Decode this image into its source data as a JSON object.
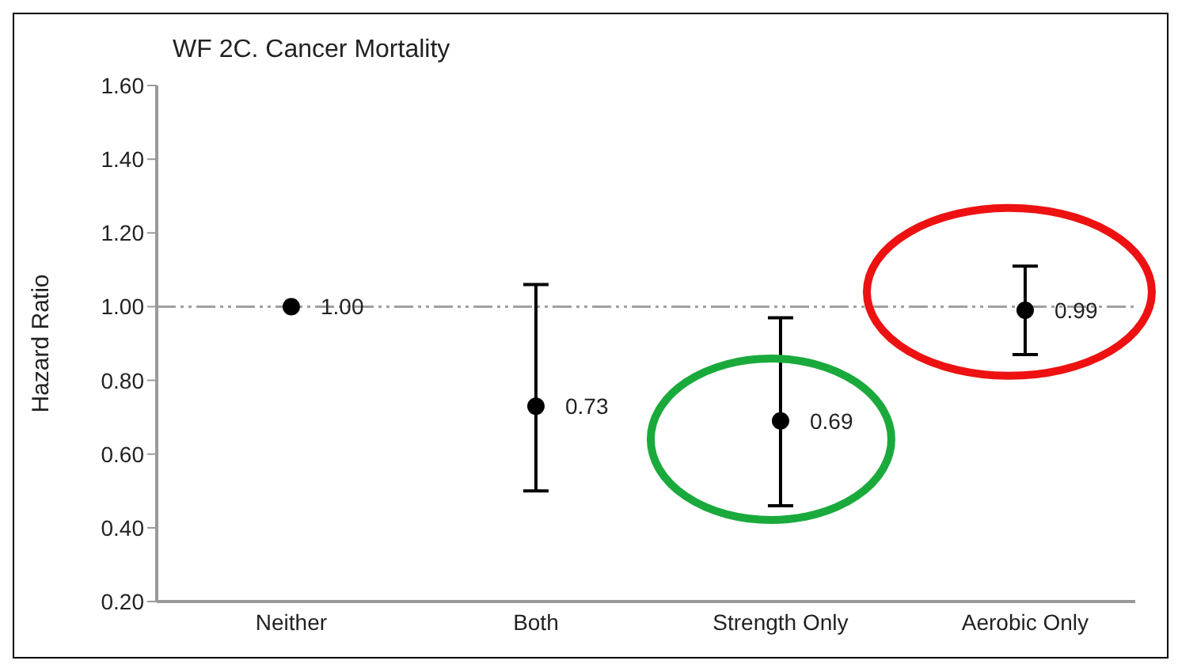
{
  "chart_data": {
    "type": "scatter",
    "title": "WF 2C. Cancer Mortality",
    "ylabel": "Hazard Ratio",
    "categories": [
      "Neither",
      "Both",
      "Strength Only",
      "Aerobic Only"
    ],
    "series": [
      {
        "color": "#000000",
        "values": [
          1.0,
          0.73,
          0.69,
          0.99
        ],
        "errors": [
          null,
          [
            0.5,
            1.06
          ],
          [
            0.46,
            0.97
          ],
          [
            0.87,
            1.11
          ]
        ],
        "value_labels": [
          "1.00",
          "0.73",
          "0.69",
          "0.99"
        ]
      }
    ],
    "marker": "circle",
    "ylim": [
      0.2,
      1.6
    ],
    "yticks": [
      {
        "value": 0.2,
        "label": "0.20"
      },
      {
        "value": 0.4,
        "label": "0.40"
      },
      {
        "value": 0.6,
        "label": "0.60"
      },
      {
        "value": 0.8,
        "label": "0.80"
      },
      {
        "value": 1.0,
        "label": "1.00"
      },
      {
        "value": 1.2,
        "label": "1.20"
      },
      {
        "value": 1.4,
        "label": "1.40"
      },
      {
        "value": 1.6,
        "label": "1.60"
      }
    ],
    "ref_lines": [
      {
        "axis": "y",
        "value": 1.0,
        "color": "#a0a0a0",
        "line_style": "dashdot"
      }
    ]
  }
}
